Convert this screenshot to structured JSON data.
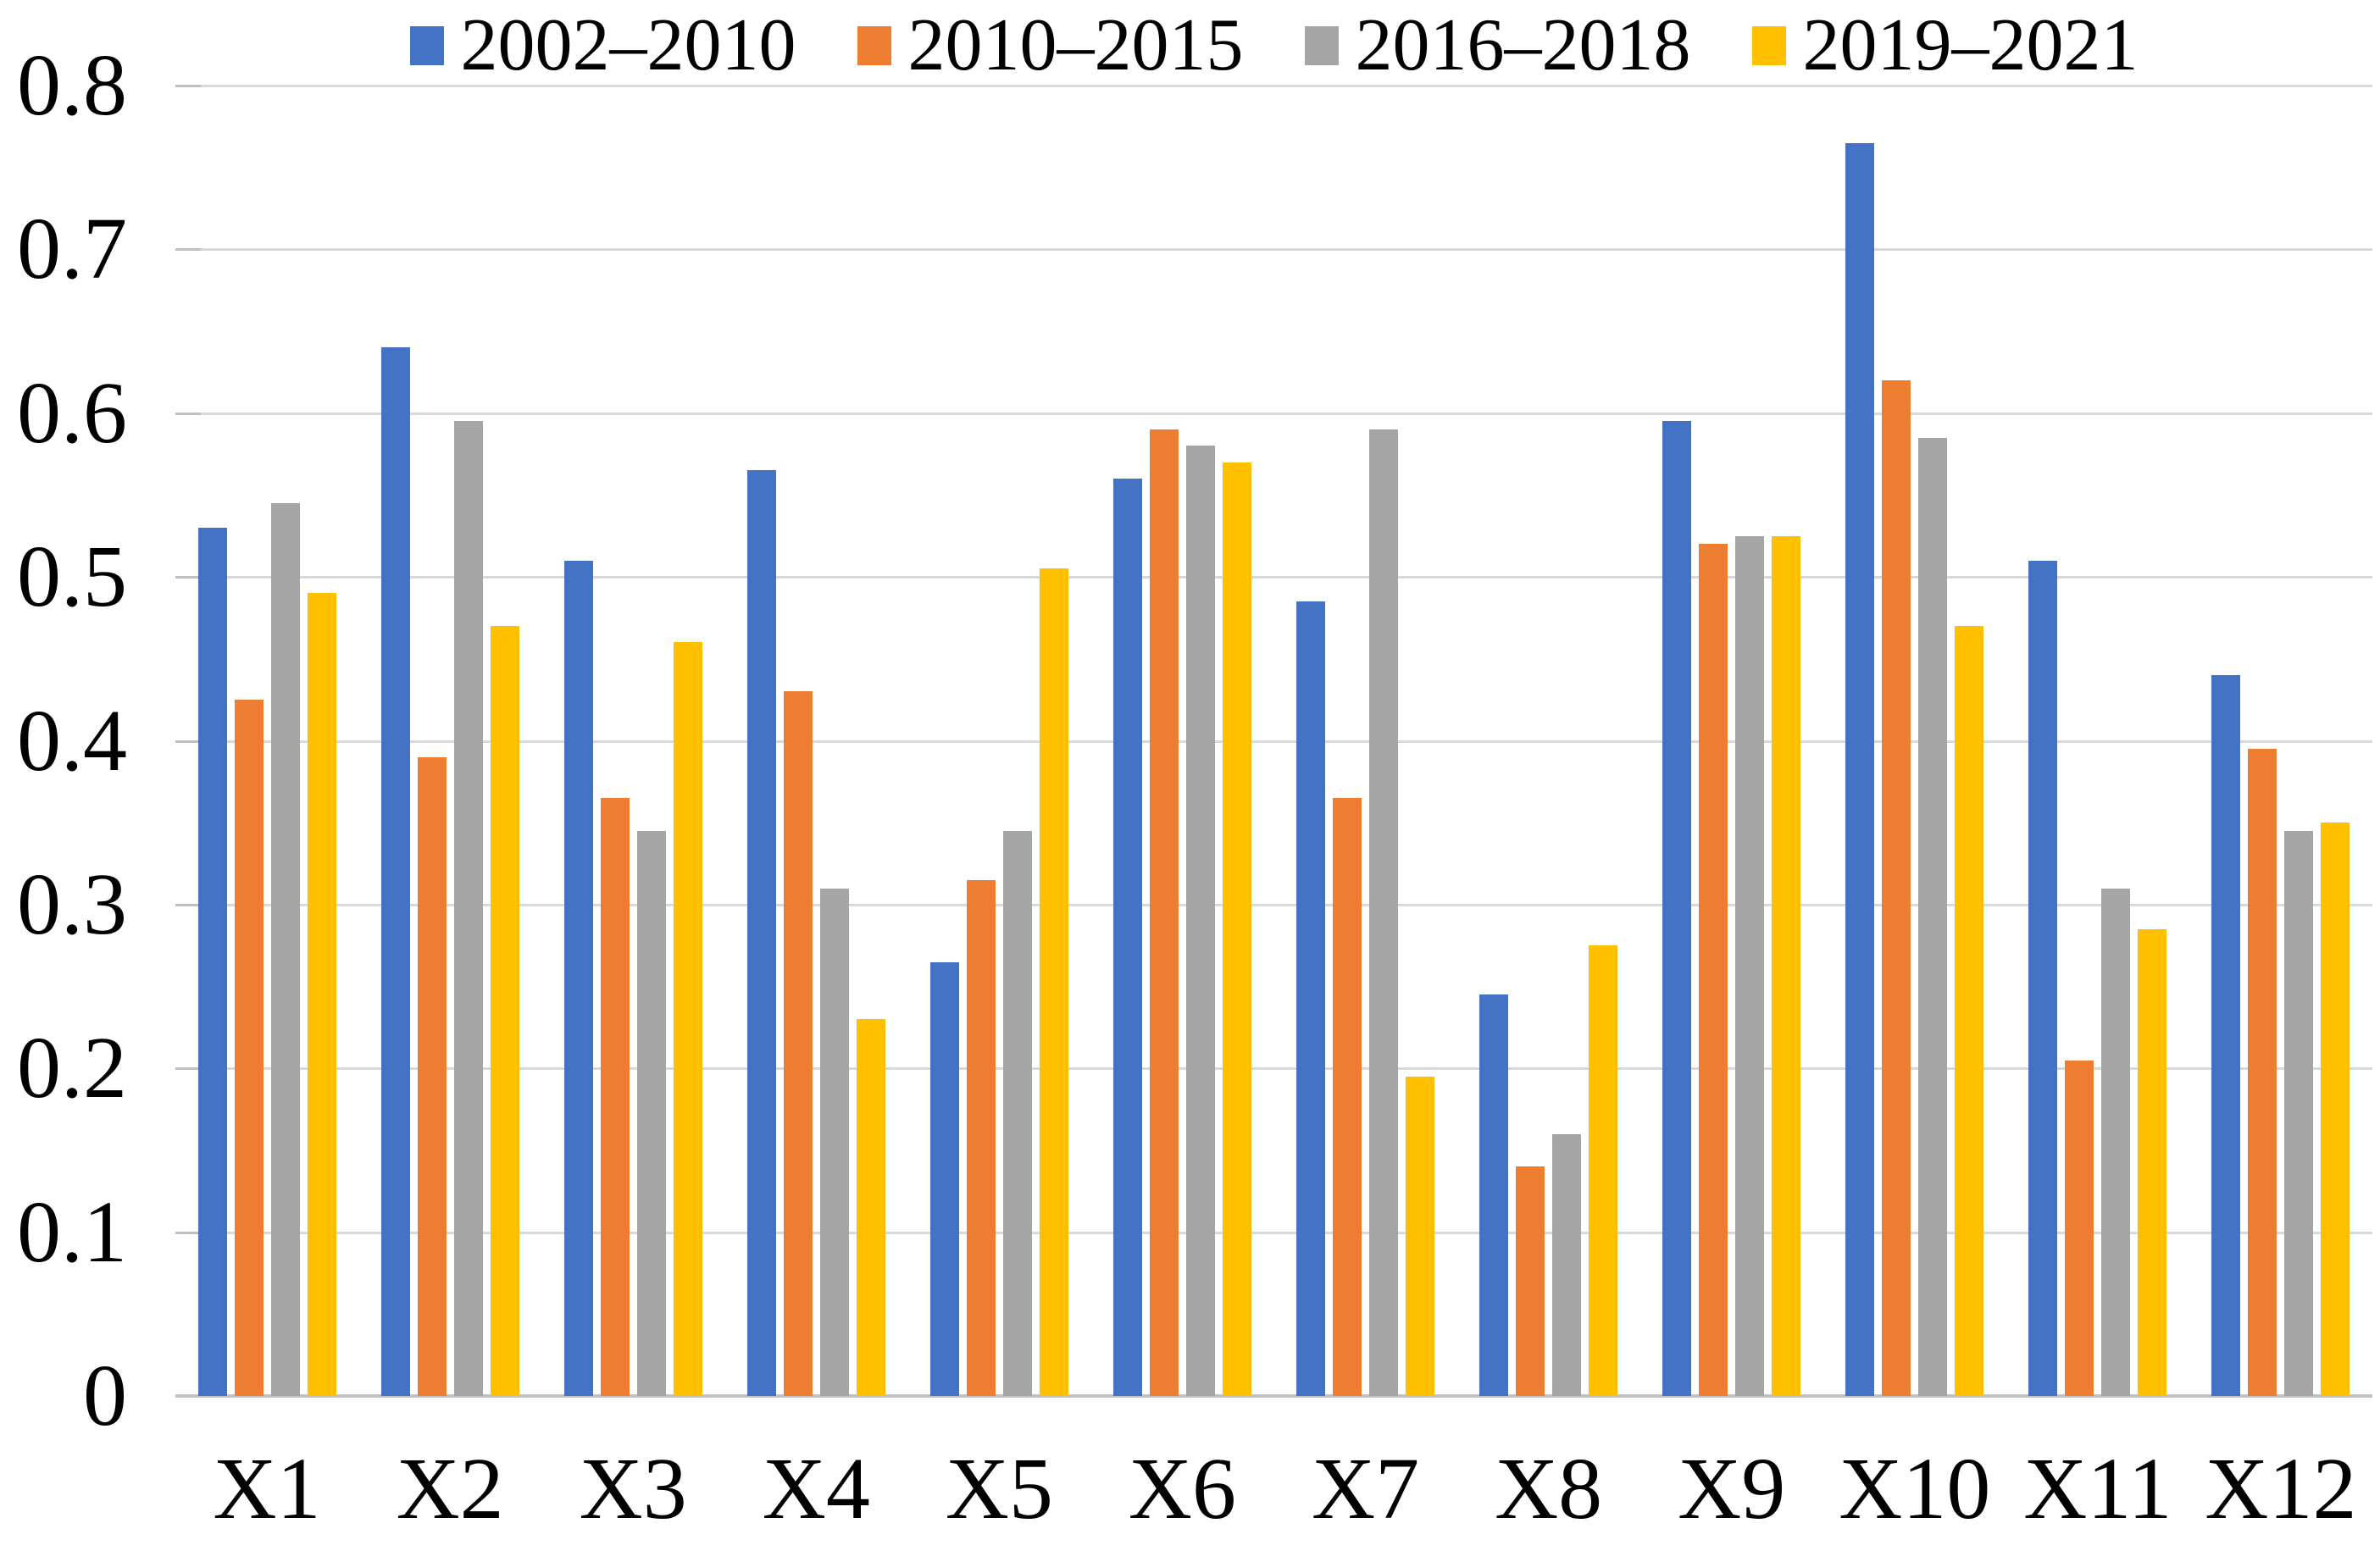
{
  "chart_data": {
    "type": "bar",
    "title": "",
    "xlabel": "",
    "ylabel": "",
    "categories": [
      "X1",
      "X2",
      "X3",
      "X4",
      "X5",
      "X6",
      "X7",
      "X8",
      "X9",
      "X10",
      "X11",
      "X12"
    ],
    "series": [
      {
        "name": "2002–2010",
        "color": "#4472C4",
        "values": [
          0.53,
          0.64,
          0.51,
          0.565,
          0.265,
          0.56,
          0.485,
          0.245,
          0.595,
          0.765,
          0.51,
          0.44
        ]
      },
      {
        "name": "2010–2015",
        "color": "#ED7D31",
        "values": [
          0.425,
          0.39,
          0.365,
          0.43,
          0.315,
          0.59,
          0.365,
          0.14,
          0.52,
          0.62,
          0.205,
          0.395
        ]
      },
      {
        "name": "2016–2018",
        "color": "#A5A5A5",
        "values": [
          0.545,
          0.595,
          0.345,
          0.31,
          0.345,
          0.58,
          0.59,
          0.16,
          0.525,
          0.585,
          0.31,
          0.345
        ]
      },
      {
        "name": "2019–2021",
        "color": "#FFC000",
        "values": [
          0.49,
          0.47,
          0.46,
          0.23,
          0.505,
          0.57,
          0.195,
          0.275,
          0.525,
          0.47,
          0.285,
          0.35
        ]
      }
    ],
    "ylim": [
      0,
      0.8
    ],
    "y_ticks": [
      0,
      0.1,
      0.2,
      0.3,
      0.4,
      0.5,
      0.6,
      0.7,
      0.8
    ],
    "y_tick_labels": [
      "0",
      "0.1",
      "0.2",
      "0.3",
      "0.4",
      "0.5",
      "0.6",
      "0.7",
      "0.8"
    ],
    "grid": true,
    "legend_position": "top",
    "gridline_color": "#D9D9D9",
    "axis_color": "#C2C2C2",
    "tick_color": "#BFBFBF"
  }
}
